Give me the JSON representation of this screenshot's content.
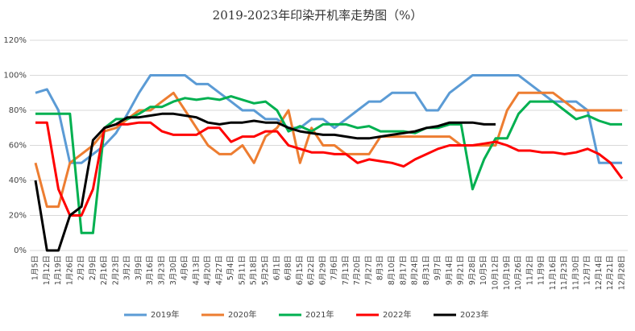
{
  "chart_data": {
    "type": "line",
    "title": "2019-2023年印染开机率走势图（%）",
    "categories": [
      "1月5日",
      "1月12日",
      "1月19日",
      "1月26日",
      "2月2日",
      "2月9日",
      "2月16日",
      "2月23日",
      "3月2日",
      "3月9日",
      "3月16日",
      "3月23日",
      "3月30日",
      "4月6日",
      "4月13日",
      "4月20日",
      "4月27日",
      "5月4日",
      "5月11日",
      "5月18日",
      "5月25日",
      "6月1日",
      "6月8日",
      "6月15日",
      "6月22日",
      "6月29日",
      "7月6日",
      "7月13日",
      "7月20日",
      "7月27日",
      "8月3日",
      "8月10日",
      "8月17日",
      "8月24日",
      "8月31日",
      "9月7日",
      "9月14日",
      "9月21日",
      "9月28日",
      "10月5日",
      "10月12日",
      "10月19日",
      "10月26日",
      "11月2日",
      "11月9日",
      "11月16日",
      "11月23日",
      "11月30日",
      "12月7日",
      "12月14日",
      "12月21日",
      "12月28日"
    ],
    "series": [
      {
        "name": "2019年",
        "color": "#5b9bd5",
        "values": [
          90,
          92,
          80,
          50,
          50,
          55,
          60,
          67,
          78,
          90,
          100,
          100,
          100,
          100,
          95,
          95,
          90,
          85,
          80,
          80,
          75,
          75,
          70,
          70,
          75,
          75,
          70,
          75,
          80,
          85,
          85,
          90,
          90,
          90,
          80,
          80,
          90,
          95,
          100,
          100,
          100,
          100,
          100,
          95,
          90,
          85,
          85,
          85,
          80,
          50,
          50,
          50
        ]
      },
      {
        "name": "2020年",
        "color": "#ed7d31",
        "values": [
          50,
          25,
          25,
          50,
          55,
          60,
          68,
          70,
          75,
          80,
          80,
          85,
          90,
          80,
          70,
          60,
          55,
          55,
          60,
          50,
          65,
          70,
          80,
          50,
          70,
          60,
          60,
          55,
          55,
          55,
          65,
          65,
          65,
          65,
          65,
          65,
          65,
          60,
          60,
          60,
          60,
          80,
          90,
          90,
          90,
          90,
          85,
          80,
          80,
          80,
          80,
          80
        ]
      },
      {
        "name": "2021年",
        "color": "#00b050",
        "values": [
          78,
          78,
          78,
          78,
          10,
          10,
          70,
          75,
          75,
          78,
          82,
          82,
          85,
          87,
          86,
          87,
          86,
          88,
          86,
          84,
          85,
          80,
          68,
          71,
          68,
          72,
          72,
          72,
          70,
          71,
          68,
          68,
          68,
          67,
          70,
          70,
          72,
          72,
          35,
          52,
          64,
          64,
          78,
          85,
          85,
          85,
          80,
          75,
          77,
          74,
          72,
          72
        ]
      },
      {
        "name": "2022年",
        "color": "#ff0000",
        "values": [
          73,
          73,
          35,
          20,
          20,
          35,
          70,
          72,
          72,
          73,
          73,
          68,
          66,
          66,
          66,
          70,
          70,
          62,
          65,
          65,
          68,
          68,
          60,
          58,
          56,
          56,
          55,
          55,
          50,
          52,
          51,
          50,
          48,
          52,
          55,
          58,
          60,
          60,
          60,
          61,
          62,
          60,
          57,
          57,
          56,
          56,
          55,
          56,
          58,
          55,
          50,
          41
        ]
      },
      {
        "name": "2023年",
        "color": "#000000",
        "values": [
          40,
          0,
          0,
          20,
          25,
          63,
          70,
          72,
          76,
          76,
          77,
          78,
          78,
          77,
          76,
          73,
          72,
          73,
          73,
          74,
          73,
          73,
          70,
          68,
          67,
          66,
          66,
          65,
          64,
          64,
          65,
          66,
          67,
          68,
          70,
          71,
          73,
          73,
          73,
          72,
          72,
          null,
          null,
          null,
          null,
          null,
          null,
          null,
          null,
          null,
          null,
          null
        ]
      }
    ],
    "ylim": [
      0,
      120
    ],
    "yticks": [
      {
        "value": 0,
        "label": "0%"
      },
      {
        "value": 20,
        "label": "20%"
      },
      {
        "value": 40,
        "label": "40%"
      },
      {
        "value": 60,
        "label": "60%"
      },
      {
        "value": 80,
        "label": "80%"
      },
      {
        "value": 100,
        "label": "100%"
      },
      {
        "value": 120,
        "label": "120%"
      }
    ],
    "grid": true,
    "legend": "bottom"
  }
}
